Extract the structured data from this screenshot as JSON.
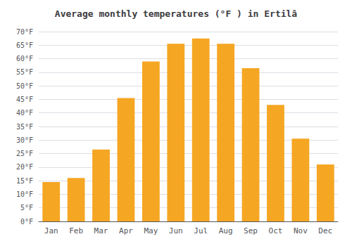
{
  "chart_data": {
    "type": "bar",
    "title": "Average monthly temperatures (°F ) in Ertilâ",
    "categories": [
      "Jan",
      "Feb",
      "Mar",
      "Apr",
      "May",
      "Jun",
      "Jul",
      "Aug",
      "Sep",
      "Oct",
      "Nov",
      "Dec"
    ],
    "values": [
      14.5,
      16.0,
      26.5,
      45.5,
      59.0,
      65.5,
      67.5,
      65.5,
      56.5,
      43.0,
      30.5,
      21.0
    ],
    "color": "#F5A623",
    "ylim": [
      0,
      70
    ],
    "yticks": [
      {
        "value": 0,
        "label": "0°F"
      },
      {
        "value": 5,
        "label": "5°F"
      },
      {
        "value": 10,
        "label": "10°F"
      },
      {
        "value": 15,
        "label": "15°F"
      },
      {
        "value": 20,
        "label": "20°F"
      },
      {
        "value": 25,
        "label": "25°F"
      },
      {
        "value": 30,
        "label": "30°F"
      },
      {
        "value": 35,
        "label": "35°F"
      },
      {
        "value": 40,
        "label": "40°F"
      },
      {
        "value": 45,
        "label": "45°F"
      },
      {
        "value": 50,
        "label": "50°F"
      },
      {
        "value": 55,
        "label": "55°F"
      },
      {
        "value": 60,
        "label": "60°F"
      },
      {
        "value": 65,
        "label": "65°F"
      },
      {
        "value": 70,
        "label": "70°F"
      }
    ],
    "grid": true
  }
}
